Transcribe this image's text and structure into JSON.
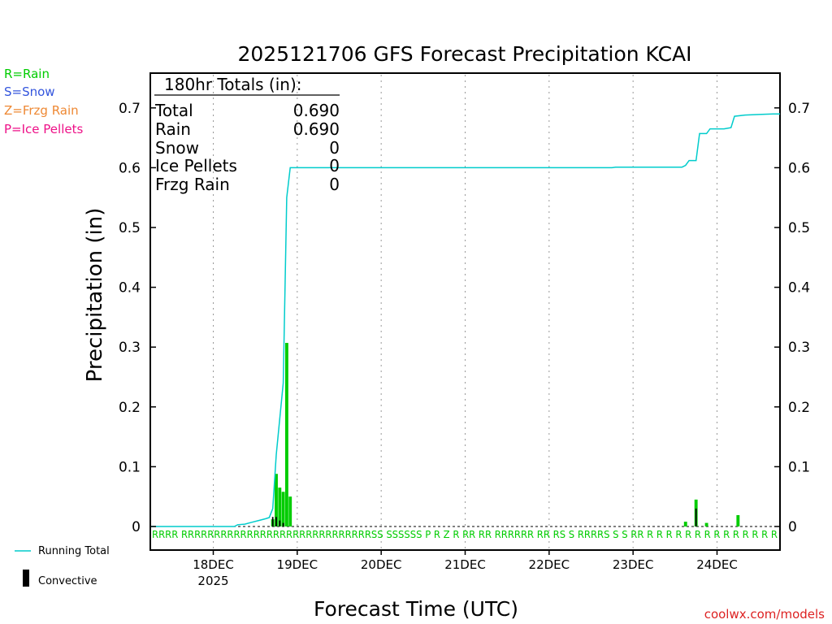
{
  "colors": {
    "rain": "#00cc00",
    "snow": "#3355dd",
    "frzg": "#ee8833",
    "ice": "#ee1188",
    "running_total": "#00cccc",
    "convective": "#000000",
    "credit": "#dd2222",
    "grid": "#999999"
  },
  "legend": {
    "rain": "R=Rain",
    "snow": "S=Snow",
    "frzg": "Z=Frzg Rain",
    "ice": "P=Ice Pellets",
    "running_total": "Running Total",
    "convective": "Convective"
  },
  "totals": {
    "title": "180hr Totals (in):",
    "rows": [
      {
        "label": "Total",
        "value": "0.690"
      },
      {
        "label": "Rain",
        "value": "0.690"
      },
      {
        "label": "Snow",
        "value": "0"
      },
      {
        "label": "Ice Pellets",
        "value": "0"
      },
      {
        "label": "Frzg Rain",
        "value": "0"
      }
    ]
  },
  "credit": "coolwx.com/models",
  "chart_data": {
    "type": "bar",
    "title": "2025121706 GFS Forecast Precipitation KCAI",
    "xlabel": "Forecast Time (UTC)",
    "ylabel": "Precipitation (in)",
    "ylim": [
      0,
      0.76
    ],
    "xlim_hours": [
      0,
      180
    ],
    "yticks": [
      "0",
      "0.1",
      "0.2",
      "0.3",
      "0.4",
      "0.5",
      "0.6",
      "0.7"
    ],
    "ytick_values": [
      0,
      0.1,
      0.2,
      0.3,
      0.4,
      0.5,
      0.6,
      0.7
    ],
    "x_ticks": [
      {
        "label": "18DEC",
        "sub": "2025",
        "hour": 18
      },
      {
        "label": "19DEC",
        "sub": "",
        "hour": 42
      },
      {
        "label": "20DEC",
        "sub": "",
        "hour": 66
      },
      {
        "label": "21DEC",
        "sub": "",
        "hour": 90
      },
      {
        "label": "22DEC",
        "sub": "",
        "hour": 114
      },
      {
        "label": "23DEC",
        "sub": "",
        "hour": 138
      },
      {
        "label": "24DEC",
        "sub": "",
        "hour": 162
      }
    ],
    "bars": [
      {
        "hour": 35,
        "value": 0.012
      },
      {
        "hour": 36,
        "value": 0.088
      },
      {
        "hour": 37,
        "value": 0.065
      },
      {
        "hour": 38,
        "value": 0.058
      },
      {
        "hour": 39,
        "value": 0.307
      },
      {
        "hour": 40,
        "value": 0.05
      },
      {
        "hour": 153,
        "value": 0.008
      },
      {
        "hour": 156,
        "value": 0.045
      },
      {
        "hour": 159,
        "value": 0.006
      },
      {
        "hour": 168,
        "value": 0.019
      }
    ],
    "convective_bars": [
      {
        "hour": 35,
        "value": 0.016
      },
      {
        "hour": 36,
        "value": 0.016
      },
      {
        "hour": 37,
        "value": 0.01
      },
      {
        "hour": 38,
        "value": 0.006
      },
      {
        "hour": 156,
        "value": 0.03
      }
    ],
    "running_total": [
      [
        0,
        0
      ],
      [
        24,
        0
      ],
      [
        25,
        0.003
      ],
      [
        27,
        0.004
      ],
      [
        29,
        0.007
      ],
      [
        31,
        0.01
      ],
      [
        33,
        0.013
      ],
      [
        34,
        0.015
      ],
      [
        35,
        0.03
      ],
      [
        36,
        0.12
      ],
      [
        37,
        0.18
      ],
      [
        38,
        0.24
      ],
      [
        39,
        0.55
      ],
      [
        40,
        0.6
      ],
      [
        42,
        0.6
      ],
      [
        90,
        0.6
      ],
      [
        132,
        0.6
      ],
      [
        133,
        0.601
      ],
      [
        152,
        0.601
      ],
      [
        153,
        0.604
      ],
      [
        154,
        0.612
      ],
      [
        156,
        0.612
      ],
      [
        157,
        0.657
      ],
      [
        159,
        0.657
      ],
      [
        160,
        0.665
      ],
      [
        164,
        0.665
      ],
      [
        166,
        0.667
      ],
      [
        167,
        0.686
      ],
      [
        170,
        0.688
      ],
      [
        174,
        0.689
      ],
      [
        178,
        0.69
      ],
      [
        180,
        0.69
      ]
    ],
    "ptype_text": "RRRR   RRRRRRRRRRRRRRRRRRRRRRRRRRRRRSS   SSSSSS P R  Z  R RR RR RRRRRR RR  RS  S  RRRRS  S  S RR   R    R R R R R R R R R R R R R"
  }
}
